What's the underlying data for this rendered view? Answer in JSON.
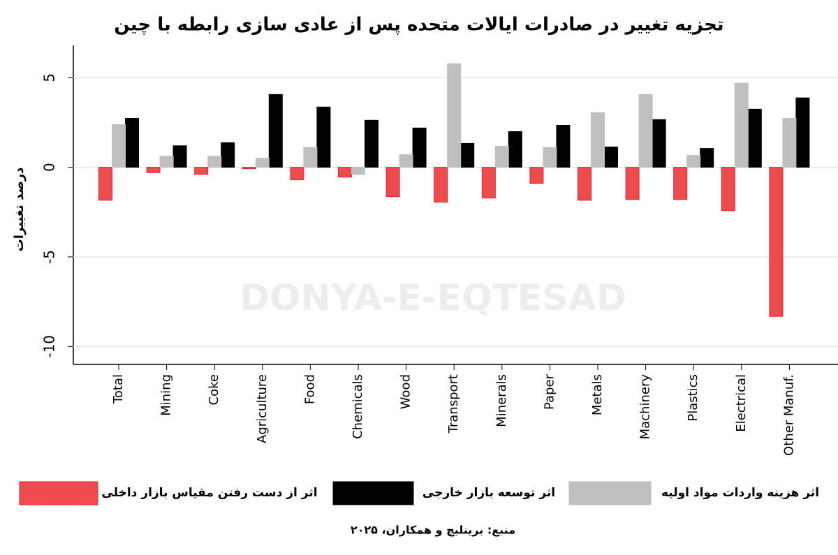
{
  "chart_data": {
    "type": "bar",
    "title": "تجزیه تغییر در صادرات ایالات متحده پس از عادی سازی رابطه با چین",
    "y_label": "درصد تغییرات",
    "categories": [
      "Total",
      "Mining",
      "Coke",
      "Agriculture",
      "Food",
      "Chemicals",
      "Wood",
      "Transport",
      "Minerals",
      "Paper",
      "Metals",
      "Machinery",
      "Plastics",
      "Electrical",
      "Other Manuf."
    ],
    "series": [
      {
        "name": "اثر از دست رفتن مقیاس بازار داخلی",
        "color": "#ee4b4f",
        "values": [
          -1.84,
          -0.3,
          -0.4,
          -0.08,
          -0.7,
          -0.55,
          -1.64,
          -1.95,
          -1.72,
          -0.9,
          -1.84,
          -1.8,
          -1.8,
          -2.42,
          -8.32
        ]
      },
      {
        "name": "اثر توسعه بازار خارجی",
        "color": "#000000",
        "values": [
          2.73,
          1.2,
          1.37,
          4.06,
          3.36,
          2.62,
          2.19,
          1.33,
          1.99,
          2.34,
          1.13,
          2.66,
          1.05,
          3.24,
          3.87
        ]
      },
      {
        "name": "اثر هزینه واردات مواد اولیه",
        "color": "#bfbfbf",
        "values": [
          2.38,
          0.62,
          0.62,
          0.5,
          1.1,
          -0.4,
          0.7,
          5.78,
          1.17,
          1.1,
          3.05,
          4.06,
          0.66,
          4.69,
          2.73
        ]
      }
    ],
    "ylim": [
      -11,
      6.8
    ],
    "yticks": [
      -10,
      -5,
      0,
      5
    ],
    "grid": true,
    "source": "منبع: برینلیچ و همکاران، ۲۰۲۵",
    "watermark": "DONYA-E-EQTESAD"
  }
}
